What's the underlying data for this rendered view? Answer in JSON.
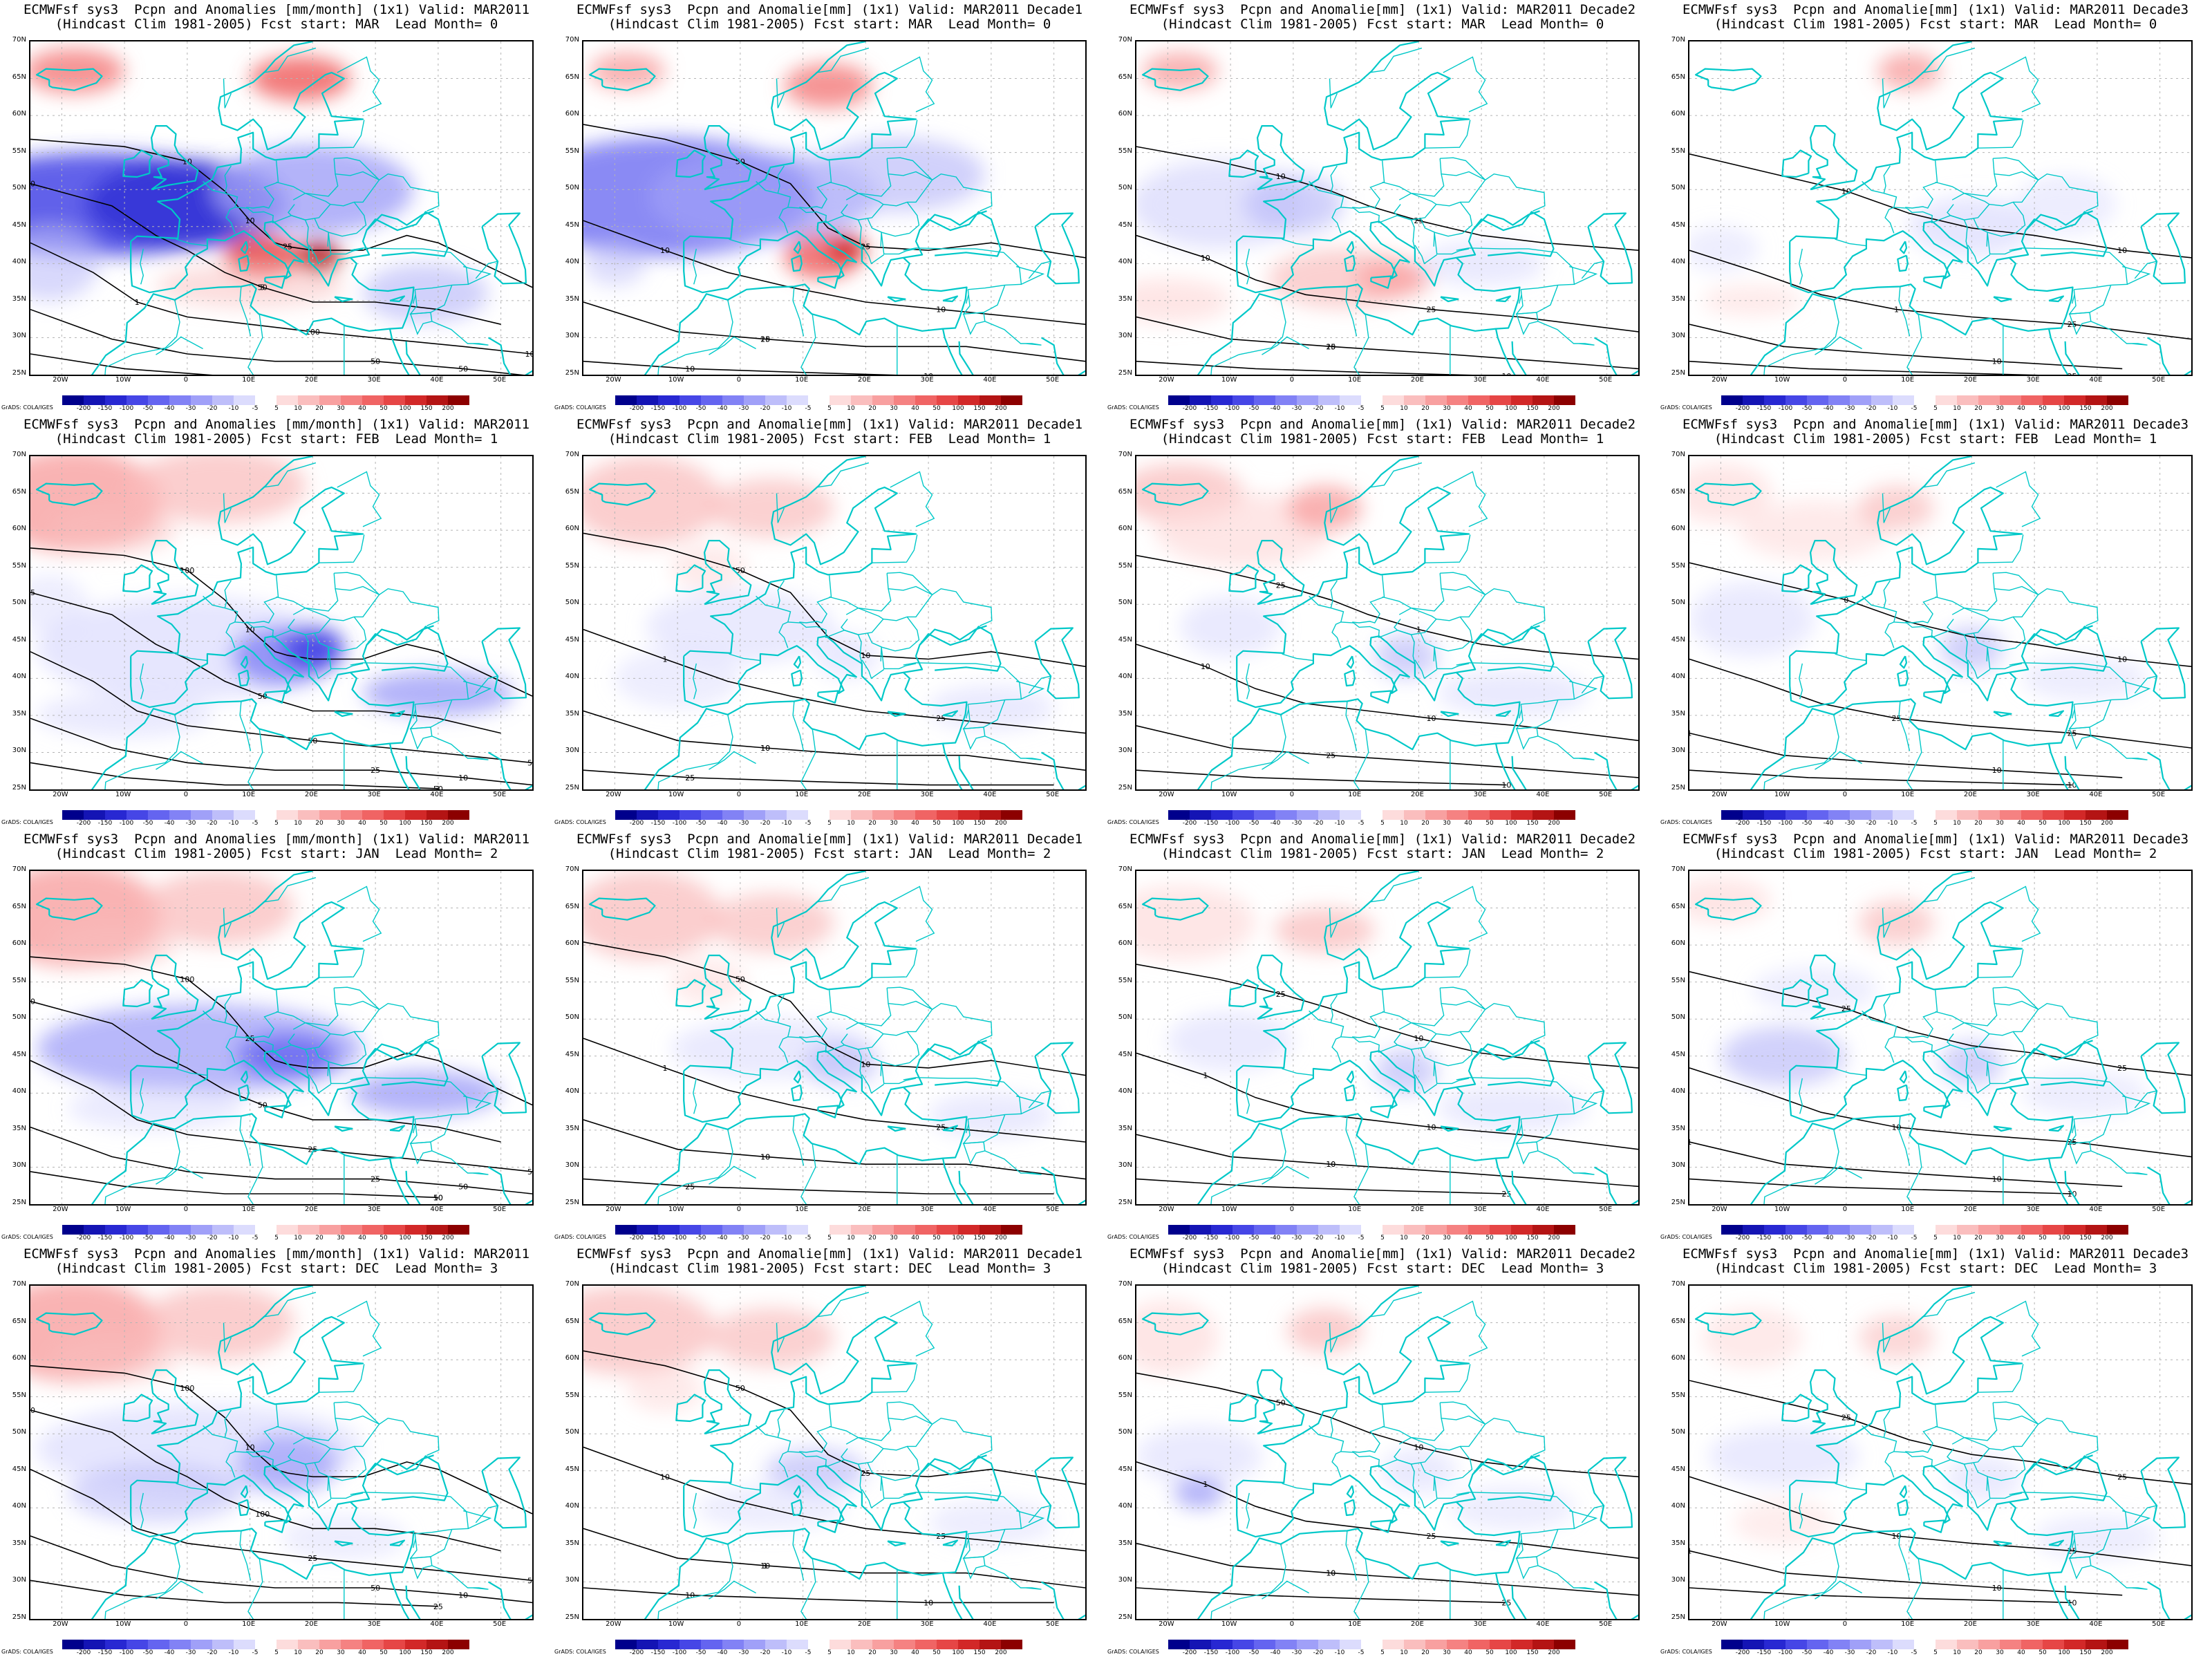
{
  "colorbar": {
    "labels": [
      "-200",
      "-150",
      "-100",
      "-50",
      "-40",
      "-30",
      "-20",
      "-10",
      "-5",
      "5",
      "10",
      "20",
      "30",
      "40",
      "50",
      "100",
      "150",
      "200"
    ],
    "colors": [
      "#00008c",
      "#1414b4",
      "#2828d2",
      "#4646e6",
      "#6464f0",
      "#8282f5",
      "#a0a0f8",
      "#bebefa",
      "#dcdcfd",
      "#ffffff",
      "#fddcdc",
      "#fabebe",
      "#f8a0a0",
      "#f58282",
      "#f06464",
      "#e64646",
      "#d22828",
      "#b41414",
      "#8c0000"
    ]
  },
  "lon_labels": [
    "20W",
    "10W",
    "0",
    "10E",
    "20E",
    "30E",
    "40E",
    "50E"
  ],
  "lat_labels": [
    "70N",
    "65N",
    "60N",
    "55N",
    "50N",
    "45N",
    "40N",
    "35N",
    "30N",
    "25N"
  ],
  "grads_label": "GrADS: COLA/IGES",
  "colors": {
    "coast": "#00c8c8",
    "contour": "#000000",
    "grid": "#b4b4b4"
  },
  "panels": [
    {
      "title1": "ECMWFsf sys3  Pcpn and Anomalies [mm/month] (1x1) Valid: MAR2011",
      "title2": "(Hindcast Clim 1981-2005) Fcst start: MAR  Lead Month= 0",
      "contour_labels": [
        "10",
        "50",
        "100",
        "50",
        "25",
        "10",
        "50",
        "100",
        "50",
        "10",
        "25",
        "5",
        "1"
      ]
    },
    {
      "title1": "ECMWFsf sys3  Pcpn and Anomalie[mm] (1x1) Valid: MAR2011 Decade1",
      "title2": "(Hindcast Clim 1981-2005) Fcst start: MAR  Lead Month= 0",
      "contour_labels": [
        "50",
        "10",
        "10",
        "10",
        "25",
        "10",
        "25",
        "10"
      ]
    },
    {
      "title1": "ECMWFsf sys3  Pcpn and Anomalie[mm] (1x1) Valid: MAR2011 Decade2",
      "title2": "(Hindcast Clim 1981-2005) Fcst start: MAR  Lead Month= 0",
      "contour_labels": [
        "10",
        "25",
        "10",
        "10",
        "25",
        "10",
        "25"
      ]
    },
    {
      "title1": "ECMWFsf sys3  Pcpn and Anomalie[mm] (1x1) Valid: MAR2011 Decade3",
      "title2": "(Hindcast Clim 1981-2005) Fcst start: MAR  Lead Month= 0",
      "contour_labels": [
        "10",
        "25",
        "10",
        "25",
        "10",
        "1"
      ]
    },
    {
      "title1": "ECMWFsf sys3  Pcpn and Anomalies [mm/month] (1x1) Valid: MAR2011",
      "title2": "(Hindcast Clim 1981-2005) Fcst start: FEB  Lead Month= 1",
      "contour_labels": [
        "100",
        "50",
        "50",
        "25",
        "50",
        "10",
        "25",
        "50",
        "10",
        "1"
      ]
    },
    {
      "title1": "ECMWFsf sys3  Pcpn and Anomalie[mm] (1x1) Valid: MAR2011 Decade1",
      "title2": "(Hindcast Clim 1981-2005) Fcst start: FEB  Lead Month= 1",
      "contour_labels": [
        "50",
        "25",
        "10",
        "25",
        "10",
        "1",
        "10"
      ]
    },
    {
      "title1": "ECMWFsf sys3  Pcpn and Anomalie[mm] (1x1) Valid: MAR2011 Decade2",
      "title2": "(Hindcast Clim 1981-2005) Fcst start: FEB  Lead Month= 1",
      "contour_labels": [
        "25",
        "10",
        "25",
        "10",
        "1",
        "10"
      ]
    },
    {
      "title1": "ECMWFsf sys3  Pcpn and Anomalie[mm] (1x1) Valid: MAR2011 Decade3",
      "title2": "(Hindcast Clim 1981-2005) Fcst start: FEB  Lead Month= 1",
      "contour_labels": [
        "0",
        "25",
        "10",
        "10",
        "10",
        "25",
        "1"
      ]
    },
    {
      "title1": "ECMWFsf sys3  Pcpn and Anomalies [mm/month] (1x1) Valid: MAR2011",
      "title2": "(Hindcast Clim 1981-2005) Fcst start: JAN  Lead Month= 2",
      "contour_labels": [
        "100",
        "50",
        "50",
        "25",
        "50",
        "25",
        "10",
        "25",
        "50",
        "10"
      ]
    },
    {
      "title1": "ECMWFsf sys3  Pcpn and Anomalie[mm] (1x1) Valid: MAR2011 Decade1",
      "title2": "(Hindcast Clim 1981-2005) Fcst start: JAN  Lead Month= 2",
      "contour_labels": [
        "50",
        "25",
        "10",
        "25",
        "10",
        "1",
        "10"
      ]
    },
    {
      "title1": "ECMWFsf sys3  Pcpn and Anomalie[mm] (1x1) Valid: MAR2011 Decade2",
      "title2": "(Hindcast Clim 1981-2005) Fcst start: JAN  Lead Month= 2",
      "contour_labels": [
        "25",
        "10",
        "10",
        "25",
        "10",
        "1",
        "10"
      ]
    },
    {
      "title1": "ECMWFsf sys3  Pcpn and Anomalie[mm] (1x1) Valid: MAR2011 Decade3",
      "title2": "(Hindcast Clim 1981-2005) Fcst start: JAN  Lead Month= 2",
      "contour_labels": [
        "25",
        "25",
        "10",
        "10",
        "25",
        "10",
        "1"
      ]
    },
    {
      "title1": "ECMWFsf sys3  Pcpn and Anomalies [mm/month] (1x1) Valid: MAR2011",
      "title2": "(Hindcast Clim 1981-2005) Fcst start: DEC  Lead Month= 3",
      "contour_labels": [
        "100",
        "100",
        "50",
        "50",
        "25",
        "10",
        "50",
        "25",
        "10"
      ]
    },
    {
      "title1": "ECMWFsf sys3  Pcpn and Anomalie[mm] (1x1) Valid: MAR2011 Decade1",
      "title2": "(Hindcast Clim 1981-2005) Fcst start: DEC  Lead Month= 3",
      "contour_labels": [
        "50",
        "25",
        "10",
        "10",
        "25",
        "10",
        "1",
        "10"
      ]
    },
    {
      "title1": "ECMWFsf sys3  Pcpn and Anomalie[mm] (1x1) Valid: MAR2011 Decade2",
      "title2": "(Hindcast Clim 1981-2005) Fcst start: DEC  Lead Month= 3",
      "contour_labels": [
        "50",
        "25",
        "10",
        "25",
        "10",
        "1",
        "10"
      ]
    },
    {
      "title1": "ECMWFsf sys3  Pcpn and Anomalie[mm] (1x1) Valid: MAR2011 Decade3",
      "title2": "(Hindcast Clim 1981-2005) Fcst start: DEC  Lead Month= 3",
      "contour_labels": [
        "25",
        "25",
        "10",
        "10",
        "25",
        "10",
        "1"
      ]
    }
  ]
}
